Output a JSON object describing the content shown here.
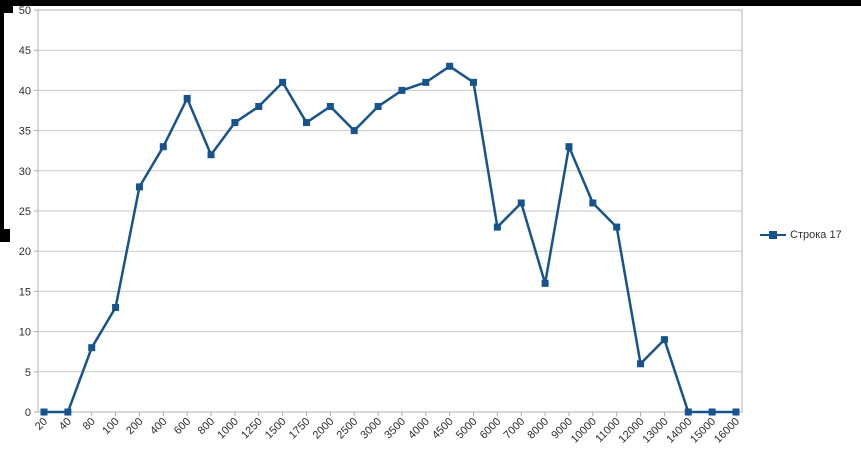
{
  "chart_data": {
    "type": "line",
    "categories": [
      "20",
      "40",
      "80",
      "100",
      "200",
      "400",
      "600",
      "800",
      "1000",
      "1250",
      "1500",
      "1750",
      "2000",
      "2500",
      "3000",
      "3500",
      "4000",
      "4500",
      "5000",
      "6000",
      "7000",
      "8000",
      "9000",
      "10000",
      "11000",
      "12000",
      "13000",
      "14000",
      "15000",
      "16000"
    ],
    "series": [
      {
        "name": "Строка 17",
        "values": [
          0,
          0,
          8,
          13,
          28,
          33,
          39,
          32,
          36,
          38,
          41,
          36,
          38,
          35,
          38,
          40,
          41,
          43,
          41,
          23,
          26,
          16,
          33,
          26,
          23,
          6,
          9,
          0,
          0,
          0
        ]
      }
    ],
    "title": "",
    "xlabel": "",
    "ylabel": "",
    "ylim": [
      0,
      50
    ],
    "y_tick_step": 5,
    "grid": true,
    "legend_position": "right",
    "marker": "square"
  },
  "colors": {
    "series": "#17538c",
    "grid": "#c9c9c9",
    "axis": "#b0b0b0",
    "text": "#2e2e2e",
    "background": "#ffffff",
    "selection": "#000000"
  },
  "legend": {
    "label": "Строка 17"
  }
}
